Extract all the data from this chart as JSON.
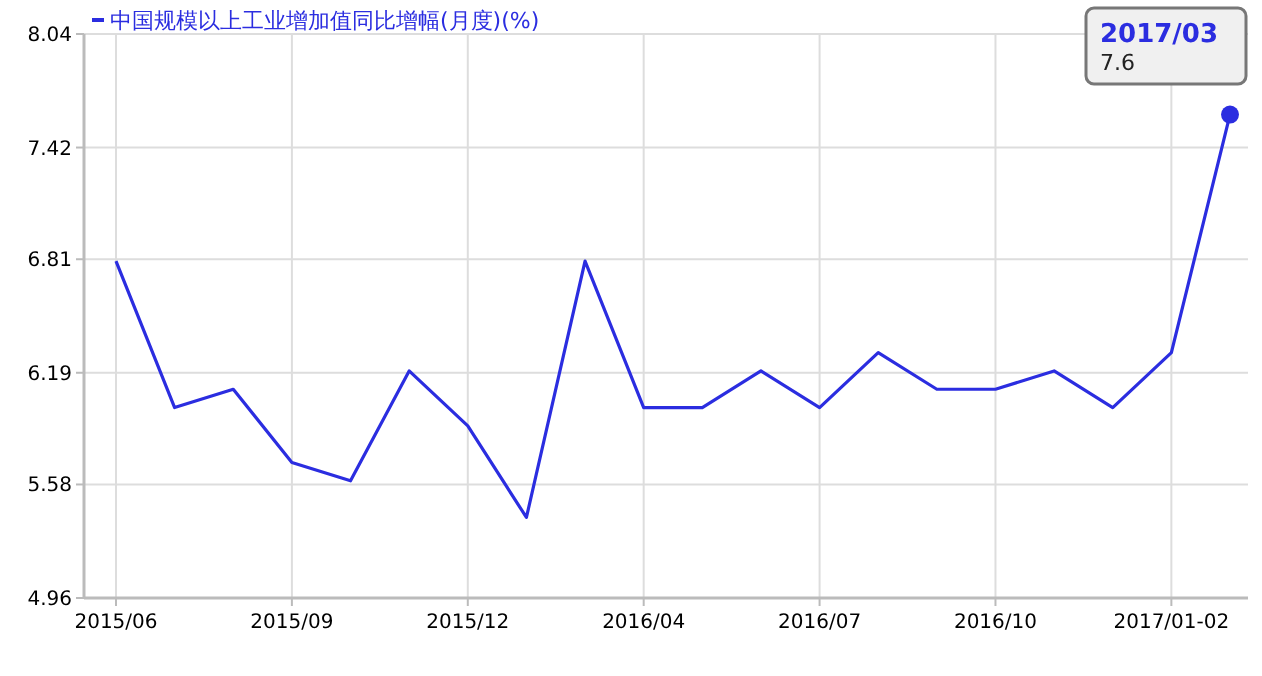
{
  "chart_data": {
    "type": "line",
    "categories": [
      "2015/06",
      null,
      null,
      "2015/09",
      null,
      null,
      "2015/12",
      null,
      null,
      "2016/04",
      null,
      null,
      "2016/07",
      null,
      null,
      "2016/10",
      null,
      null,
      "2017/01-02",
      null
    ],
    "series": [
      {
        "name": "中国规模以上工业增加值同比增幅(月度)(%)",
        "color": "#2b2de0",
        "values": [
          6.8,
          6.0,
          6.1,
          5.7,
          5.6,
          6.2,
          5.9,
          5.4,
          6.8,
          6.0,
          6.0,
          6.2,
          6.0,
          6.3,
          6.1,
          6.1,
          6.2,
          6.0,
          6.3,
          7.6
        ]
      }
    ],
    "ylim": [
      4.96,
      8.04
    ],
    "yticks": [
      4.96,
      5.58,
      6.19,
      6.81,
      7.42,
      8.04
    ],
    "grid": true,
    "legend": "top left",
    "marker": "none",
    "annotations": [
      "2017/03",
      "7.6"
    ]
  }
}
